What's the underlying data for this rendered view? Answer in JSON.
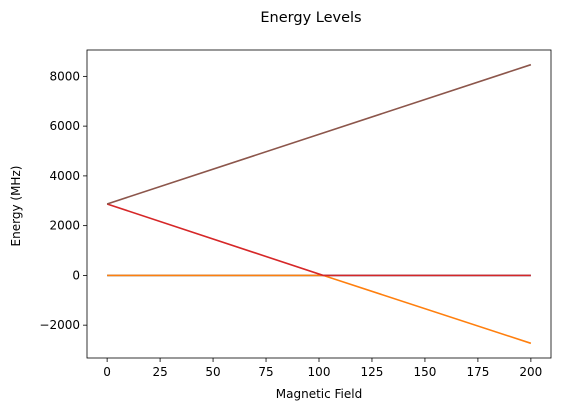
{
  "chart_data": {
    "type": "line",
    "title": "Energy Levels",
    "xlabel": "Magnetic Field",
    "ylabel": "Energy (MHz)",
    "xlim": [
      -9.5,
      209.5
    ],
    "ylim": [
      -3320,
      9060
    ],
    "xticks": [
      0,
      25,
      50,
      75,
      100,
      125,
      150,
      175,
      200
    ],
    "yticks": [
      -2000,
      0,
      2000,
      4000,
      6000,
      8000
    ],
    "ytick_labels": [
      "−2000",
      "0",
      "2000",
      "4000",
      "6000",
      "8000"
    ],
    "grid": false,
    "series": [
      {
        "color": "#1f77b4",
        "x": [
          0,
          200
        ],
        "y": [
          0,
          0
        ]
      },
      {
        "color": "#ff7f0e",
        "x": [
          0,
          102,
          200
        ],
        "y": [
          0,
          0,
          -2730
        ]
      },
      {
        "color": "#d62728",
        "x": [
          0,
          102,
          200
        ],
        "y": [
          2870,
          0,
          0
        ]
      },
      {
        "color": "#8c564b",
        "x": [
          0,
          200
        ],
        "y": [
          2870,
          8470
        ]
      }
    ]
  }
}
